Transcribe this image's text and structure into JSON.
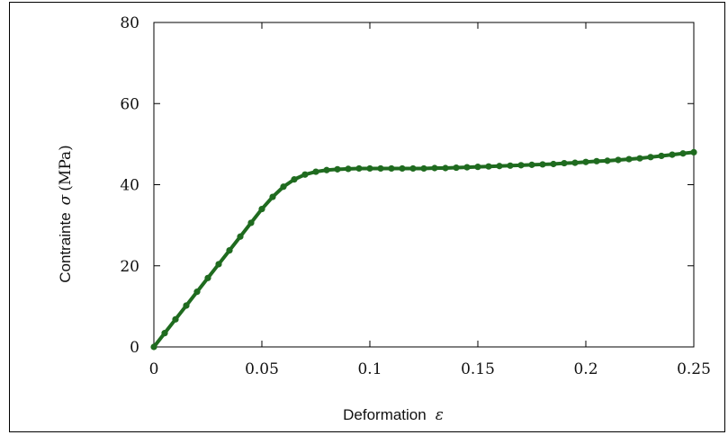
{
  "chart_data": {
    "type": "line",
    "title": "",
    "xlabel": "Deformation",
    "xlabel_symbol": "ε",
    "ylabel": "Contrainte",
    "ylabel_symbol": "σ",
    "ylabel_unit": "(MPa)",
    "xlim": [
      0,
      0.25
    ],
    "ylim": [
      0,
      80
    ],
    "xticks": [
      0,
      0.05,
      0.1,
      0.15,
      0.2,
      0.25
    ],
    "xtick_labels": [
      "0",
      "0.05",
      "0.1",
      "0.15",
      "0.2",
      "0.25"
    ],
    "yticks": [
      0,
      20,
      40,
      60,
      80
    ],
    "ytick_labels": [
      "0",
      "20",
      "40",
      "60",
      "80"
    ],
    "grid": false,
    "series": [
      {
        "color": "#1f6b1f",
        "marker": "circle",
        "x": [
          0,
          0.005,
          0.01,
          0.015,
          0.02,
          0.025,
          0.03,
          0.035,
          0.04,
          0.045,
          0.05,
          0.055,
          0.06,
          0.065,
          0.07,
          0.075,
          0.08,
          0.085,
          0.09,
          0.095,
          0.1,
          0.105,
          0.11,
          0.115,
          0.12,
          0.125,
          0.13,
          0.135,
          0.14,
          0.145,
          0.15,
          0.155,
          0.16,
          0.165,
          0.17,
          0.175,
          0.18,
          0.185,
          0.19,
          0.195,
          0.2,
          0.205,
          0.21,
          0.215,
          0.22,
          0.225,
          0.23,
          0.235,
          0.24,
          0.245,
          0.25
        ],
        "y": [
          0,
          3.4,
          6.8,
          10.2,
          13.6,
          17.0,
          20.4,
          23.8,
          27.2,
          30.6,
          34.0,
          37.0,
          39.5,
          41.3,
          42.5,
          43.2,
          43.6,
          43.8,
          43.9,
          44.0,
          44.0,
          44.0,
          44.0,
          44.0,
          44.0,
          44.0,
          44.1,
          44.1,
          44.2,
          44.3,
          44.4,
          44.5,
          44.6,
          44.7,
          44.8,
          44.9,
          45.0,
          45.1,
          45.3,
          45.4,
          45.6,
          45.8,
          45.9,
          46.1,
          46.3,
          46.5,
          46.8,
          47.1,
          47.4,
          47.7,
          48.0
        ]
      }
    ]
  }
}
